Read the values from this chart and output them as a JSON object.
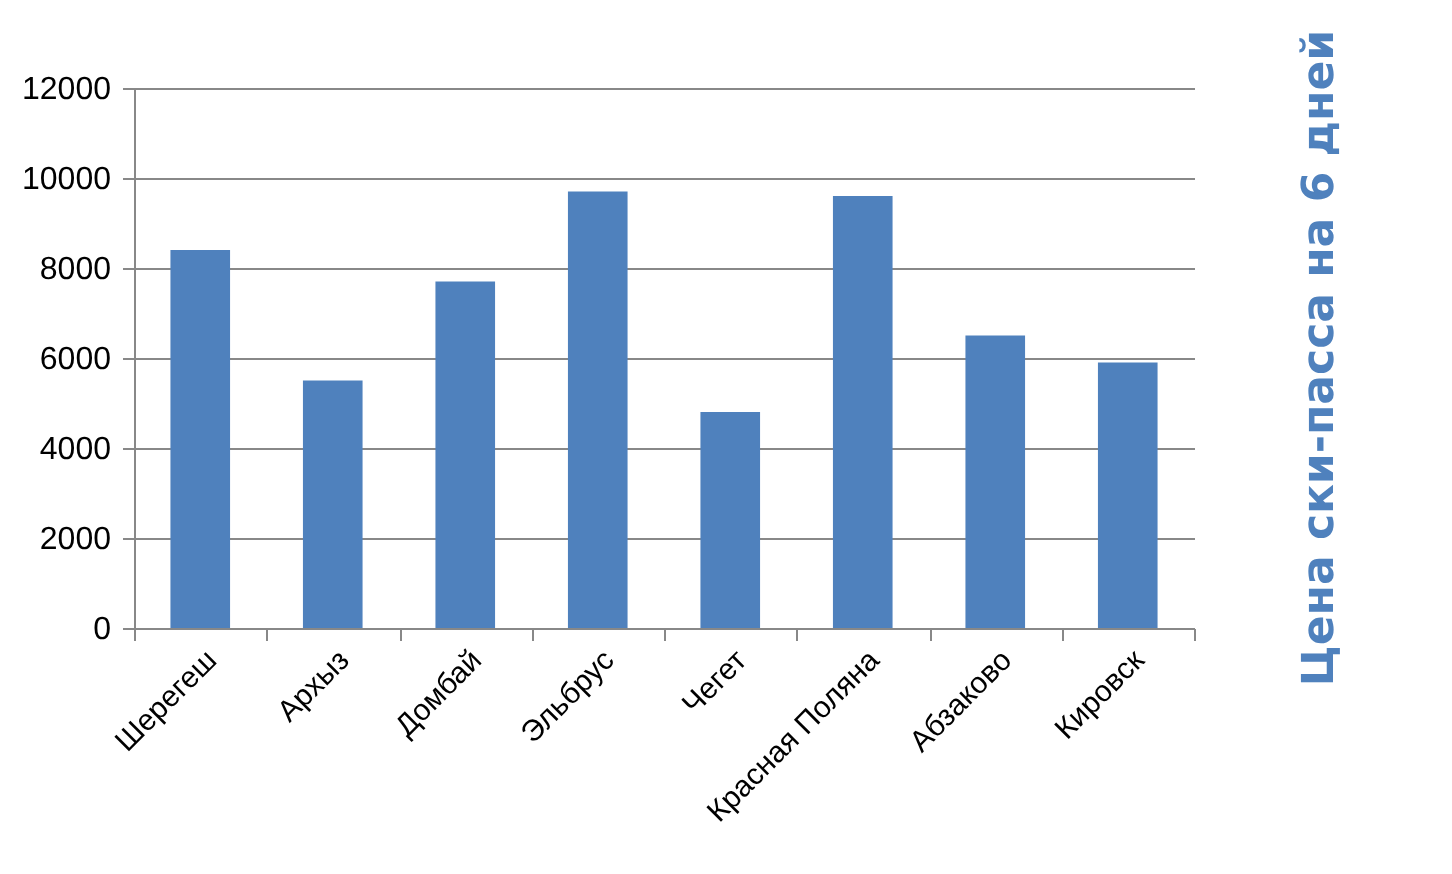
{
  "chart_data": {
    "type": "bar",
    "title": "Цена ски-пасса на 6 дней",
    "categories": [
      "Шерегеш",
      "Архыз",
      "Домбай",
      "Эльбрус",
      "Чегет",
      "Красная Поляна",
      "Абзаково",
      "Кировск"
    ],
    "values": [
      8400,
      5500,
      7700,
      9700,
      4800,
      9600,
      6500,
      5900
    ],
    "color": "#4f81bd",
    "ylim": [
      0,
      12000
    ],
    "yticks": [
      0,
      2000,
      4000,
      6000,
      8000,
      10000,
      12000
    ],
    "grid": "y"
  }
}
